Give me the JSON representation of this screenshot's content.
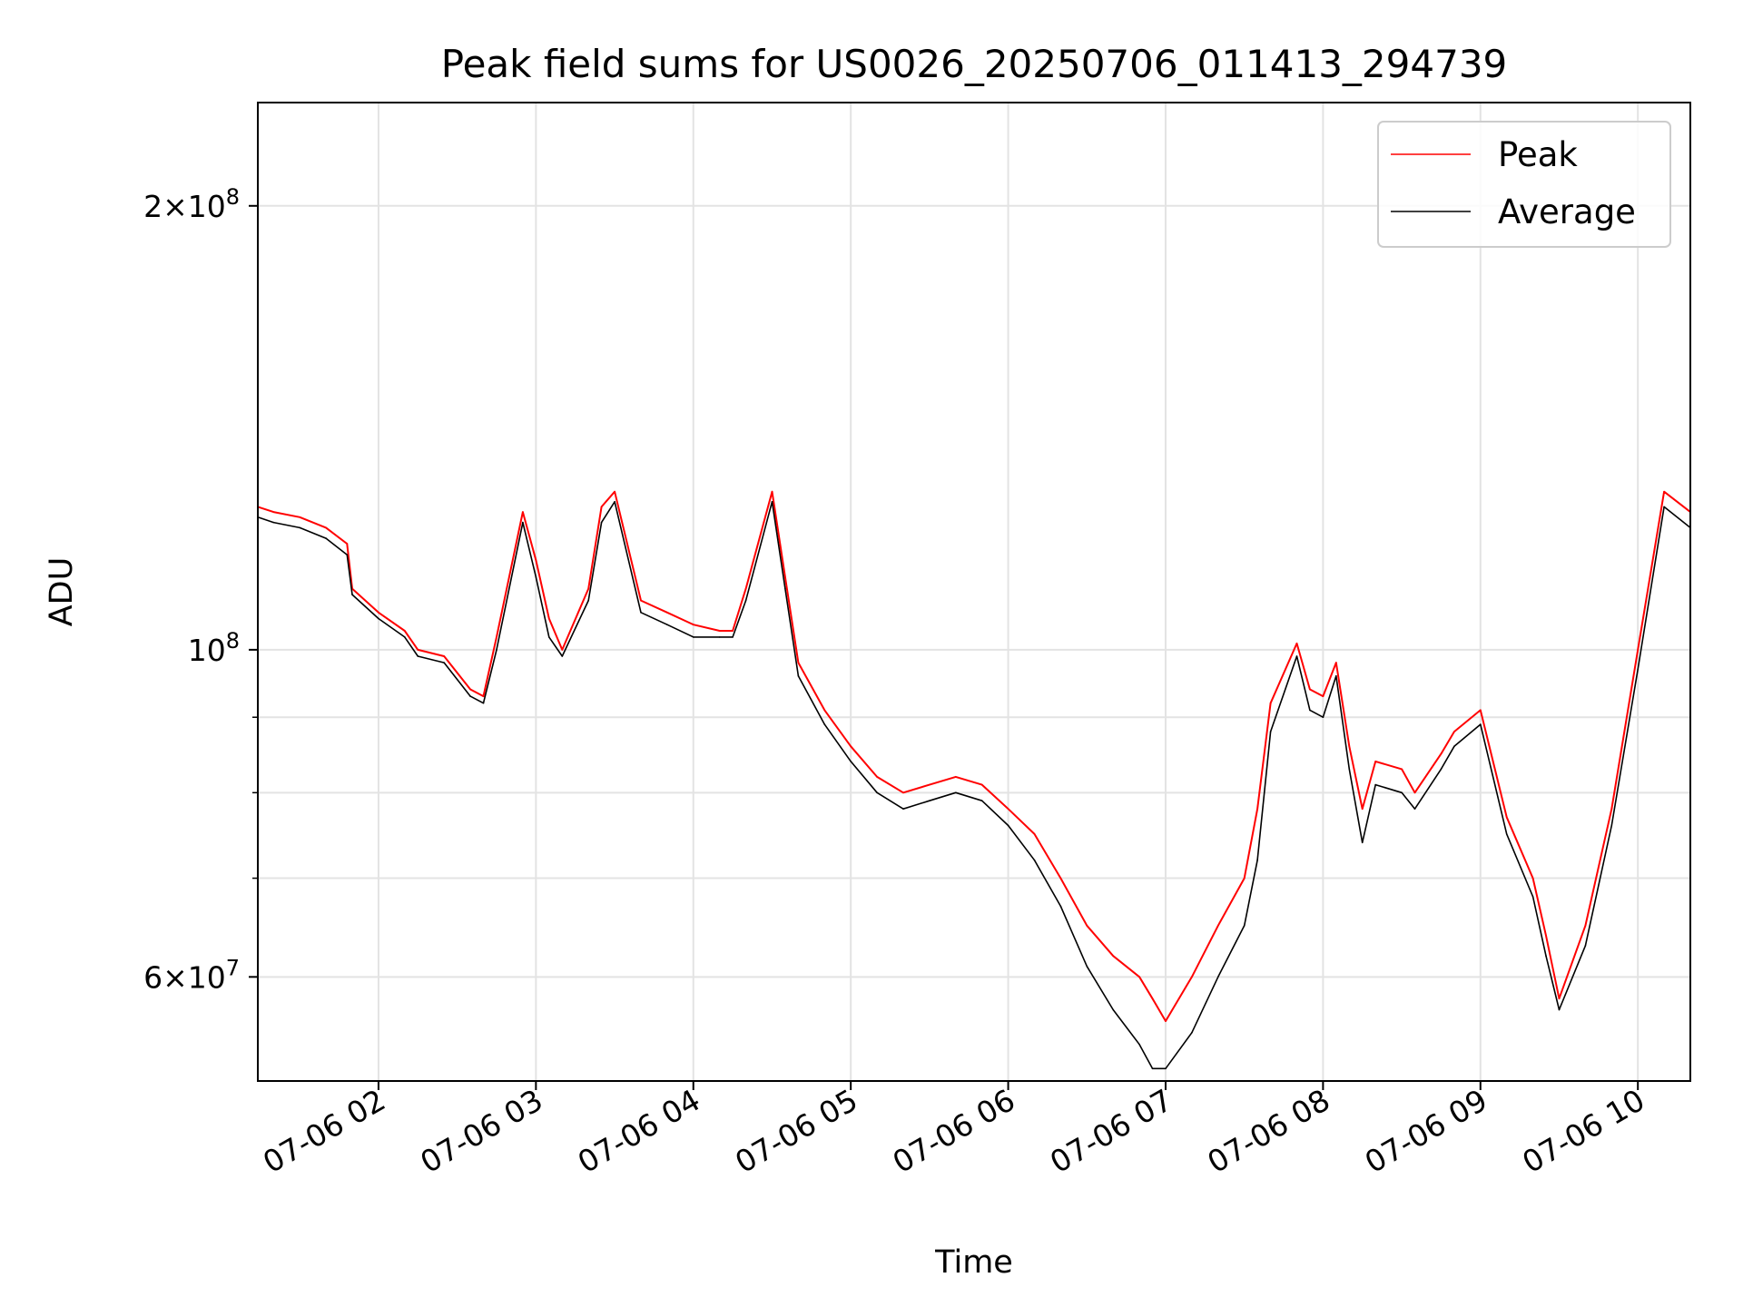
{
  "chart_data": {
    "type": "line",
    "title": "Peak field sums for US0026_20250706_011413_294739",
    "xlabel": "Time",
    "ylabel": "ADU",
    "yscale": "log",
    "xlim": [
      "2025-07-06 01:14",
      "2025-07-06 10:20"
    ],
    "ylim": [
      51000000,
      235000000
    ],
    "x_ticks": [
      "07-06 02",
      "07-06 03",
      "07-06 04",
      "07-06 05",
      "07-06 06",
      "07-06 07",
      "07-06 08",
      "07-06 09",
      "07-06 10"
    ],
    "y_major_ticks": [
      {
        "value": 60000000,
        "mantissa": "6",
        "exponent": "7"
      },
      {
        "value": 100000000,
        "mantissa": "",
        "exponent": "8"
      },
      {
        "value": 200000000,
        "mantissa": "2",
        "exponent": "8"
      }
    ],
    "y_minor_ticks": [
      70000000,
      80000000,
      90000000
    ],
    "grid": true,
    "legend_position": "top-right",
    "colors": {
      "peak": "#ff0000",
      "average": "#000000"
    },
    "series": [
      {
        "name": "Peak",
        "color": "#ff0000",
        "x": [
          "01:14",
          "01:20",
          "01:30",
          "01:40",
          "01:48",
          "01:50",
          "02:00",
          "02:10",
          "02:15",
          "02:25",
          "02:35",
          "02:40",
          "02:45",
          "02:55",
          "03:00",
          "03:05",
          "03:10",
          "03:20",
          "03:25",
          "03:30",
          "03:40",
          "03:50",
          "04:00",
          "04:10",
          "04:15",
          "04:20",
          "04:30",
          "04:35",
          "04:40",
          "04:50",
          "05:00",
          "05:10",
          "05:20",
          "05:30",
          "05:40",
          "05:50",
          "06:00",
          "06:10",
          "06:20",
          "06:30",
          "06:40",
          "06:50",
          "06:55",
          "07:00",
          "07:10",
          "07:20",
          "07:30",
          "07:35",
          "07:40",
          "07:50",
          "07:55",
          "08:00",
          "08:05",
          "08:10",
          "08:15",
          "08:20",
          "08:30",
          "08:35",
          "08:45",
          "08:50",
          "09:00",
          "09:10",
          "09:20",
          "09:25",
          "09:30",
          "09:40",
          "09:50",
          "10:00",
          "10:10",
          "10:20"
        ],
        "values": [
          125000000,
          124000000,
          123000000,
          121000000,
          118000000,
          110000000,
          106000000,
          103000000,
          100000000,
          99000000,
          94000000,
          93000000,
          102000000,
          124000000,
          115000000,
          105000000,
          100000000,
          110000000,
          125000000,
          128000000,
          108000000,
          106000000,
          104000000,
          103000000,
          103000000,
          110000000,
          128000000,
          112000000,
          98000000,
          91000000,
          86000000,
          82000000,
          80000000,
          81000000,
          82000000,
          81000000,
          78000000,
          75000000,
          70000000,
          65000000,
          62000000,
          60000000,
          58000000,
          56000000,
          60000000,
          65000000,
          70000000,
          78000000,
          92000000,
          101000000,
          94000000,
          93000000,
          98000000,
          86000000,
          78000000,
          84000000,
          83000000,
          80000000,
          85000000,
          88000000,
          91000000,
          77000000,
          70000000,
          64000000,
          58000000,
          65000000,
          78000000,
          100000000,
          128000000,
          124000000
        ]
      },
      {
        "name": "Average",
        "color": "#000000",
        "x": [
          "01:14",
          "01:20",
          "01:30",
          "01:40",
          "01:48",
          "01:50",
          "02:00",
          "02:10",
          "02:15",
          "02:25",
          "02:35",
          "02:40",
          "02:45",
          "02:55",
          "03:00",
          "03:05",
          "03:10",
          "03:20",
          "03:25",
          "03:30",
          "03:40",
          "03:50",
          "04:00",
          "04:10",
          "04:15",
          "04:20",
          "04:30",
          "04:35",
          "04:40",
          "04:50",
          "05:00",
          "05:10",
          "05:20",
          "05:30",
          "05:40",
          "05:50",
          "06:00",
          "06:10",
          "06:20",
          "06:30",
          "06:40",
          "06:50",
          "06:55",
          "07:00",
          "07:10",
          "07:20",
          "07:30",
          "07:35",
          "07:40",
          "07:50",
          "07:55",
          "08:00",
          "08:05",
          "08:10",
          "08:15",
          "08:20",
          "08:30",
          "08:35",
          "08:45",
          "08:50",
          "09:00",
          "09:10",
          "09:20",
          "09:25",
          "09:30",
          "09:40",
          "09:50",
          "10:00",
          "10:10",
          "10:20"
        ],
        "values": [
          123000000,
          122000000,
          121000000,
          119000000,
          116000000,
          109000000,
          105000000,
          102000000,
          99000000,
          98000000,
          93000000,
          92000000,
          100000000,
          122000000,
          112000000,
          102000000,
          99000000,
          108000000,
          122000000,
          126000000,
          106000000,
          104000000,
          102000000,
          102000000,
          102000000,
          108000000,
          126000000,
          110000000,
          96000000,
          89000000,
          84000000,
          80000000,
          78000000,
          79000000,
          80000000,
          79000000,
          76000000,
          72000000,
          67000000,
          61000000,
          57000000,
          54000000,
          52000000,
          52000000,
          55000000,
          60000000,
          65000000,
          72000000,
          88000000,
          99000000,
          91000000,
          90000000,
          96000000,
          83000000,
          74000000,
          81000000,
          80000000,
          78000000,
          83000000,
          86000000,
          89000000,
          75000000,
          68000000,
          62000000,
          57000000,
          63000000,
          76000000,
          97000000,
          125000000,
          121000000
        ]
      }
    ]
  }
}
